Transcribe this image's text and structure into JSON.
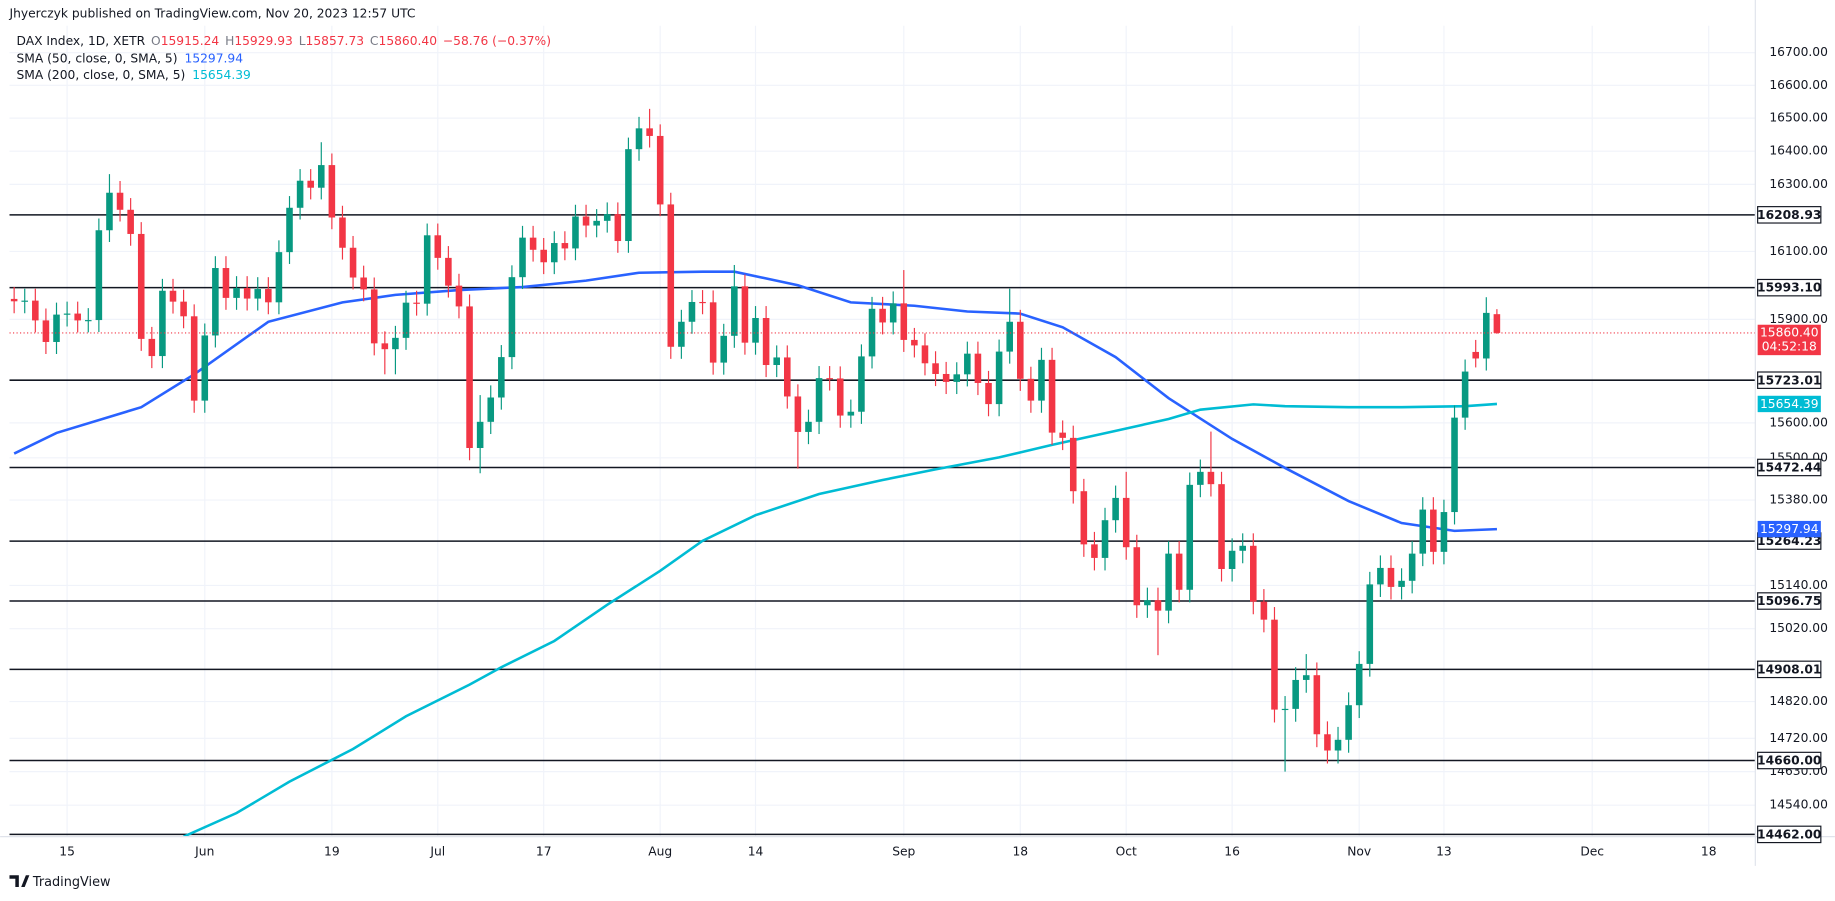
{
  "chart_data": {
    "type": "candlestick",
    "publisher": "Jhyerczyk published on TradingView.com, Nov 20, 2023 12:57 UTC",
    "legend": {
      "symbol": "DAX Index, 1D, XETR",
      "o_label": "O",
      "o": "15915.24",
      "h_label": "H",
      "h": "15929.93",
      "l_label": "L",
      "l": "15857.73",
      "c_label": "C",
      "c": "15860.40",
      "change": "−58.76 (−0.37%)"
    },
    "up_color": "#089981",
    "down_color": "#f23645",
    "log": true,
    "grid": true,
    "xlim": [
      -0.44,
      164.4
    ],
    "ylim": [
      14456,
      16783
    ],
    "xticks": [
      {
        "value": 5,
        "label": "15"
      },
      {
        "value": 18,
        "label": "Jun"
      },
      {
        "value": 30,
        "label": "19"
      },
      {
        "value": 40,
        "label": "Jul"
      },
      {
        "value": 50,
        "label": "17"
      },
      {
        "value": 61,
        "label": "Aug"
      },
      {
        "value": 70,
        "label": "14"
      },
      {
        "value": 84,
        "label": "Sep"
      },
      {
        "value": 95,
        "label": "18"
      },
      {
        "value": 105,
        "label": "Oct"
      },
      {
        "value": 115,
        "label": "16"
      },
      {
        "value": 127,
        "label": "Nov"
      },
      {
        "value": 135,
        "label": "13"
      },
      {
        "value": 149,
        "label": "Dec"
      },
      {
        "value": 160,
        "label": "18"
      }
    ],
    "yticks": [
      {
        "value": 16700,
        "label": "16700.00"
      },
      {
        "value": 16600,
        "label": "16600.00"
      },
      {
        "value": 16500,
        "label": "16500.00"
      },
      {
        "value": 16400,
        "label": "16400.00"
      },
      {
        "value": 16300,
        "label": "16300.00"
      },
      {
        "value": 16100,
        "label": "16100.00"
      },
      {
        "value": 15900,
        "label": "15900.00"
      },
      {
        "value": 15600,
        "label": "15600.00"
      },
      {
        "value": 15500,
        "label": "15500.00"
      },
      {
        "value": 15380,
        "label": "15380.00"
      },
      {
        "value": 15140,
        "label": "15140.00"
      },
      {
        "value": 15020,
        "label": "15020.00"
      },
      {
        "value": 14820,
        "label": "14820.00"
      },
      {
        "value": 14720,
        "label": "14720.00"
      },
      {
        "value": 14630,
        "label": "14630.00"
      },
      {
        "value": 14540,
        "label": "14540.00"
      }
    ],
    "levels": [
      {
        "value": 16208.93,
        "label": "16208.93"
      },
      {
        "value": 15993.1,
        "label": "15993.10"
      },
      {
        "value": 15723.01,
        "label": "15723.01"
      },
      {
        "value": 15472.44,
        "label": "15472.44"
      },
      {
        "value": 15264.23,
        "label": "15264.23"
      },
      {
        "value": 15096.75,
        "label": "15096.75"
      },
      {
        "value": 14908.01,
        "label": "14908.01"
      },
      {
        "value": 14660.0,
        "label": "14660.00"
      },
      {
        "value": 14462.0,
        "label": "14462.00"
      }
    ],
    "last_price_label": "15860.40",
    "countdown": "04:52:18",
    "open": [
      15960,
      15953,
      15955,
      15897,
      15834,
      15914,
      15917,
      15897,
      15898,
      16163,
      16275,
      16224,
      16152,
      15843,
      15793,
      15984,
      15952,
      15909,
      15664,
      15853,
      16051,
      15963,
      15992,
      15961,
      15989,
      15950,
      16098,
      16230,
      16311,
      16290,
      16358,
      16201,
      16111,
      16023,
      15988,
      15830,
      15813,
      15846,
      15949,
      15946,
      16148,
      16081,
      15999,
      15938,
      15528,
      15603,
      15673,
      15790,
      16024,
      16141,
      16105,
      16068,
      16125,
      16109,
      16204,
      16177,
      16191,
      16211,
      16131,
      16406,
      16469,
      16446,
      16240,
      15820,
      15893,
      15951,
      15950,
      15774,
      15852,
      15997,
      15832,
      15904,
      15767,
      15789,
      15676,
      15574,
      15603,
      15729,
      15728,
      15621,
      15632,
      15792,
      15931,
      15891,
      15947,
      15840,
      15824,
      15772,
      15741,
      15718,
      15740,
      15800,
      15715,
      15654,
      15806,
      15893,
      15727,
      15664,
      15782,
      15572,
      15557,
      15405,
      15255,
      15217,
      15323,
      15386,
      15247,
      15085,
      15099,
      15070,
      15229,
      15128,
      15423,
      15460,
      15425,
      15186,
      15237,
      15251,
      15095,
      15045,
      14798,
      14800,
      14879,
      14892,
      14731,
      14687,
      14716,
      14810,
      14923,
      15143,
      15189,
      15136,
      15153,
      15229,
      15353,
      15234,
      15346,
      15615,
      15805,
      15786,
      15915.24
    ],
    "high": [
      15995,
      15990,
      15990,
      15932,
      15949,
      15952,
      15952,
      15933,
      16198,
      16331,
      16310,
      16259,
      16187,
      15878,
      16019,
      16019,
      15987,
      15944,
      15888,
      16086,
      16086,
      16027,
      16027,
      16024,
      16024,
      16133,
      16265,
      16346,
      16346,
      16427,
      16393,
      16236,
      16146,
      16058,
      16023,
      15865,
      15881,
      15984,
      15984,
      16183,
      16183,
      16116,
      16034,
      15973,
      15680,
      15708,
      15825,
      16059,
      16176,
      16176,
      16140,
      16160,
      16160,
      16239,
      16239,
      16226,
      16246,
      16246,
      16441,
      16504,
      16528,
      16481,
      16275,
      15928,
      15986,
      15986,
      15985,
      15887,
      16060,
      16032,
      15939,
      15939,
      15824,
      15824,
      15711,
      15638,
      15764,
      15764,
      15763,
      15667,
      15827,
      15966,
      15966,
      15982,
      16045,
      15875,
      15859,
      15807,
      15776,
      15775,
      15835,
      15835,
      15750,
      15841,
      15990,
      15928,
      15762,
      15817,
      15817,
      15607,
      15592,
      15440,
      15290,
      15358,
      15421,
      15460,
      15282,
      15134,
      15134,
      15264,
      15264,
      15458,
      15495,
      15575,
      15460,
      15272,
      15286,
      15286,
      15130,
      15080,
      14835,
      14914,
      14950,
      14927,
      14766,
      14751,
      14845,
      14958,
      15178,
      15224,
      15224,
      15188,
      15264,
      15388,
      15388,
      15381,
      15650,
      15783,
      15840,
      15965,
      15929.93
    ],
    "low": [
      15918,
      15918,
      15862,
      15799,
      15799,
      15879,
      15862,
      15862,
      15863,
      16128,
      16189,
      16117,
      15808,
      15758,
      15758,
      15917,
      15874,
      15629,
      15629,
      15818,
      15928,
      15928,
      15926,
      15926,
      15915,
      15915,
      16063,
      16195,
      16255,
      16255,
      16166,
      16076,
      15988,
      15953,
      15795,
      15740,
      15740,
      15811,
      15911,
      15911,
      16046,
      15964,
      15903,
      15493,
      15456,
      15568,
      15638,
      15755,
      15989,
      16070,
      16033,
      16033,
      16074,
      16074,
      16142,
      16142,
      16156,
      16096,
      16096,
      16371,
      16411,
      16205,
      15785,
      15785,
      15858,
      15915,
      15739,
      15739,
      15817,
      15797,
      15797,
      15732,
      15732,
      15641,
      15469,
      15539,
      15568,
      15693,
      15586,
      15586,
      15597,
      15757,
      15856,
      15856,
      15805,
      15789,
      15737,
      15706,
      15683,
      15683,
      15705,
      15680,
      15619,
      15619,
      15771,
      15692,
      15629,
      15629,
      15537,
      15522,
      15370,
      15220,
      15182,
      15182,
      15288,
      15212,
      15050,
      15050,
      14947,
      15035,
      15093,
      15093,
      15388,
      15390,
      15151,
      15151,
      15202,
      15060,
      15010,
      14763,
      14630,
      14765,
      14844,
      14696,
      14652,
      14652,
      14681,
      14775,
      14888,
      15108,
      15101,
      15101,
      15118,
      15194,
      15199,
      15199,
      15311,
      15580,
      15760,
      15751,
      15857.73
    ],
    "close": [
      15953,
      15955,
      15897,
      15834,
      15914,
      15917,
      15897,
      15898,
      16163,
      16275,
      16224,
      16152,
      15843,
      15793,
      15984,
      15952,
      15909,
      15664,
      15853,
      16051,
      15963,
      15992,
      15961,
      15989,
      15950,
      16098,
      16230,
      16311,
      16290,
      16358,
      16201,
      16111,
      16023,
      15988,
      15830,
      15813,
      15846,
      15949,
      15946,
      16148,
      16081,
      15999,
      15938,
      15528,
      15603,
      15673,
      15790,
      16024,
      16141,
      16105,
      16068,
      16125,
      16109,
      16204,
      16177,
      16191,
      16211,
      16131,
      16406,
      16469,
      16446,
      16240,
      15820,
      15893,
      15951,
      15950,
      15774,
      15852,
      15997,
      15832,
      15904,
      15767,
      15789,
      15676,
      15574,
      15603,
      15729,
      15728,
      15621,
      15632,
      15792,
      15931,
      15891,
      15947,
      15840,
      15824,
      15772,
      15741,
      15718,
      15740,
      15800,
      15715,
      15654,
      15806,
      15893,
      15727,
      15664,
      15782,
      15572,
      15557,
      15405,
      15255,
      15217,
      15323,
      15386,
      15247,
      15085,
      15099,
      15070,
      15229,
      15128,
      15423,
      15460,
      15425,
      15186,
      15237,
      15251,
      15095,
      15045,
      14798,
      14800,
      14879,
      14892,
      14731,
      14687,
      14716,
      14810,
      14923,
      15143,
      15189,
      15136,
      15153,
      15229,
      15353,
      15234,
      15346,
      15615,
      15748,
      15786,
      15919,
      15860.4
    ],
    "series": [
      {
        "name": "SMA (50, close, 0, SMA, 5)",
        "color": "#2962ff",
        "x": [
          0,
          4,
          12,
          17,
          24,
          31,
          36,
          42,
          48,
          54,
          59,
          65,
          68,
          74,
          79,
          85,
          90,
          95,
          99,
          104,
          109,
          115,
          120,
          126,
          131,
          136,
          140
        ],
        "values": [
          15512,
          15571,
          15645,
          15740,
          15893,
          15950,
          15972,
          15986,
          15995,
          16014,
          16037,
          16040,
          16040,
          16000,
          15950,
          15940,
          15923,
          15917,
          15877,
          15790,
          15671,
          15554,
          15471,
          15377,
          15315,
          15293,
          15297.94
        ]
      },
      {
        "name": "SMA (200, close, 0, SMA, 5)",
        "color": "#00bcd4",
        "x": [
          16,
          21,
          26,
          32,
          37,
          43,
          46,
          51,
          56,
          61,
          65,
          70,
          76,
          82,
          87,
          93,
          98,
          104,
          109,
          112,
          117,
          120,
          126,
          131,
          137,
          140
        ],
        "values": [
          14456,
          14519,
          14603,
          14691,
          14780,
          14866,
          14914,
          14986,
          15086,
          15181,
          15265,
          15337,
          15397,
          15437,
          15467,
          15501,
          15537,
          15577,
          15611,
          15638,
          15653,
          15648,
          15645,
          15645,
          15648,
          15654.39
        ]
      }
    ]
  },
  "footer": {
    "brand": "TradingView"
  }
}
